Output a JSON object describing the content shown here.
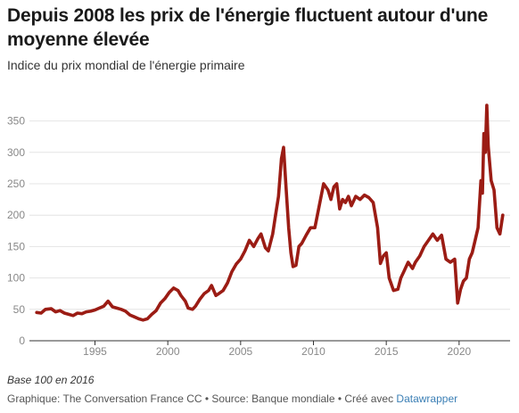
{
  "header": {
    "title": "Depuis 2008 les prix de l'énergie fluctuent autour d'une moyenne élevée",
    "subtitle": "Indice du prix mondial de l'énergie primaire"
  },
  "footer": {
    "note": "Base 100 en 2016",
    "credits_prefix": "Graphique: The Conversation France CC • Source: Banque mondiale • Créé avec ",
    "credits_link": "Datawrapper"
  },
  "chart_data": {
    "type": "line",
    "title": "Depuis 2008 les prix de l'énergie fluctuent autour d'une moyenne élevée",
    "subtitle": "Indice du prix mondial de l'énergie primaire",
    "xlabel": "",
    "ylabel": "",
    "xlim": [
      1990.5,
      2023.5
    ],
    "ylim": [
      0,
      375
    ],
    "x_ticks": [
      1995,
      2000,
      2005,
      2010,
      2015,
      2020
    ],
    "y_ticks": [
      0,
      50,
      100,
      150,
      200,
      250,
      300,
      350
    ],
    "grid": "horizontal",
    "line_color": "#9b1c14",
    "series": [
      {
        "x": [
          1991.0,
          1991.3,
          1991.6,
          1992.0,
          1992.3,
          1992.6,
          1992.9,
          1993.2,
          1993.5,
          1993.8,
          1994.1,
          1994.4,
          1994.7,
          1995.0,
          1995.3,
          1995.6,
          1995.9,
          1996.2,
          1996.5,
          1996.8,
          1997.1,
          1997.4,
          1997.7,
          1998.0,
          1998.3,
          1998.6,
          1998.9,
          1999.2,
          1999.5,
          1999.8,
          2000.1,
          2000.4,
          2000.7,
          2000.9,
          2001.2,
          2001.4,
          2001.7,
          2001.9,
          2002.2,
          2002.5,
          2002.8,
          2003.0,
          2003.3,
          2003.5,
          2003.8,
          2004.1,
          2004.4,
          2004.7,
          2005.0,
          2005.3,
          2005.6,
          2005.9,
          2006.2,
          2006.4,
          2006.7,
          2006.9,
          2007.2,
          2007.4,
          2007.6,
          2007.8,
          2007.95,
          2008.1,
          2008.3,
          2008.45,
          2008.6,
          2008.8,
          2009.0,
          2009.2,
          2009.5,
          2009.8,
          2010.1,
          2010.4,
          2010.7,
          2011.0,
          2011.2,
          2011.4,
          2011.6,
          2011.8,
          2012.0,
          2012.2,
          2012.4,
          2012.6,
          2012.9,
          2013.2,
          2013.5,
          2013.8,
          2014.1,
          2014.4,
          2014.6,
          2014.8,
          2015.0,
          2015.2,
          2015.5,
          2015.8,
          2016.0,
          2016.2,
          2016.5,
          2016.8,
          2017.0,
          2017.3,
          2017.6,
          2017.9,
          2018.2,
          2018.5,
          2018.8,
          2019.1,
          2019.4,
          2019.7,
          2019.9,
          2020.1,
          2020.3,
          2020.5,
          2020.7,
          2020.9,
          2021.1,
          2021.3,
          2021.5,
          2021.6,
          2021.7,
          2021.8,
          2021.9,
          2022.0,
          2022.2,
          2022.4,
          2022.6,
          2022.8,
          2023.0
        ],
        "values": [
          45,
          44,
          50,
          51,
          46,
          48,
          44,
          42,
          40,
          44,
          43,
          46,
          47,
          49,
          52,
          55,
          63,
          54,
          52,
          50,
          47,
          41,
          38,
          35,
          33,
          35,
          42,
          48,
          60,
          67,
          77,
          84,
          80,
          72,
          63,
          52,
          50,
          55,
          66,
          75,
          80,
          88,
          72,
          75,
          80,
          92,
          110,
          122,
          130,
          143,
          160,
          150,
          163,
          170,
          148,
          143,
          170,
          200,
          230,
          290,
          308,
          250,
          180,
          140,
          118,
          120,
          150,
          155,
          168,
          180,
          180,
          215,
          250,
          240,
          225,
          245,
          250,
          210,
          225,
          220,
          230,
          215,
          230,
          225,
          232,
          228,
          220,
          180,
          123,
          135,
          140,
          100,
          80,
          82,
          100,
          110,
          125,
          115,
          125,
          135,
          150,
          160,
          170,
          160,
          168,
          130,
          125,
          130,
          60,
          82,
          95,
          100,
          130,
          140,
          160,
          180,
          255,
          235,
          330,
          300,
          375,
          310,
          255,
          240,
          180,
          170,
          200
        ],
        "color": "#9b1c14"
      }
    ]
  }
}
